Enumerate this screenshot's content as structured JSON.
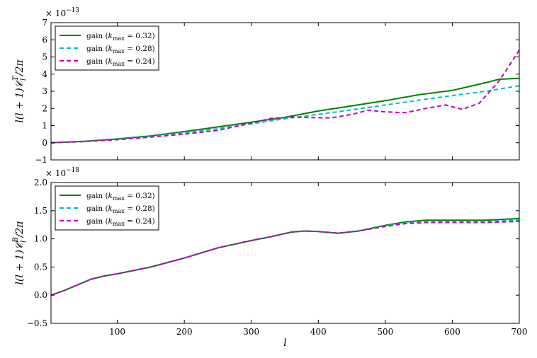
{
  "chart_data": [
    {
      "type": "line",
      "panel": "top",
      "ylabel": "l(l + 1)𝒞_l^T/2π",
      "ylabel_main": "l(l + 1)𝒞",
      "ylabel_sub": "l",
      "ylabel_sup": "T",
      "ylabel_tail": "/2π",
      "offset_text": "× 10",
      "offset_exp": "−13",
      "xlim": [
        1,
        700
      ],
      "ylim": [
        -1,
        7
      ],
      "yticks": [
        -1,
        0,
        1,
        2,
        3,
        4,
        5,
        6,
        7
      ],
      "yticklabels": [
        "−1",
        "0",
        "1",
        "2",
        "3",
        "4",
        "5",
        "6",
        "7"
      ],
      "legend_position": "top-left",
      "series": [
        {
          "name": "gain (k_max = 0.32)",
          "name_prefix": "gain (",
          "name_sub": "max",
          "name_value": " = 0.32)",
          "color": "#008000",
          "dash": "solid",
          "x": [
            1,
            50,
            100,
            150,
            200,
            250,
            300,
            350,
            400,
            450,
            500,
            550,
            600,
            650,
            670,
            700
          ],
          "y": [
            0.0,
            0.08,
            0.22,
            0.4,
            0.65,
            0.92,
            1.2,
            1.48,
            1.85,
            2.15,
            2.45,
            2.8,
            3.05,
            3.5,
            3.7,
            3.75
          ]
        },
        {
          "name": "gain (k_max = 0.28)",
          "name_prefix": "gain (",
          "name_sub": "max",
          "name_value": " = 0.28)",
          "color": "#00bfbf",
          "dash": "dashed",
          "x": [
            1,
            50,
            100,
            150,
            200,
            250,
            300,
            350,
            400,
            450,
            500,
            550,
            600,
            650,
            700
          ],
          "y": [
            0.0,
            0.07,
            0.2,
            0.36,
            0.58,
            0.82,
            1.1,
            1.4,
            1.65,
            1.92,
            2.2,
            2.48,
            2.75,
            3.0,
            3.32
          ]
        },
        {
          "name": "gain (k_max = 0.24)",
          "name_prefix": "gain (",
          "name_sub": "max",
          "name_value": " = 0.24)",
          "color": "#bf00bf",
          "dash": "dashed",
          "x": [
            1,
            50,
            100,
            150,
            200,
            250,
            300,
            330,
            360,
            390,
            420,
            450,
            475,
            500,
            530,
            560,
            590,
            615,
            640,
            670,
            700
          ],
          "y": [
            0.0,
            0.07,
            0.18,
            0.33,
            0.5,
            0.72,
            1.15,
            1.42,
            1.5,
            1.46,
            1.45,
            1.65,
            1.9,
            1.8,
            1.75,
            2.0,
            2.2,
            1.95,
            2.3,
            3.6,
            5.4
          ]
        }
      ]
    },
    {
      "type": "line",
      "panel": "bottom",
      "xlabel": "l",
      "ylabel": "l(l + 1)𝒞_l^B/2π",
      "ylabel_main": "l(l + 1)𝒞",
      "ylabel_sub": "l",
      "ylabel_sup": "B",
      "ylabel_tail": "/2π",
      "offset_text": "× 10",
      "offset_exp": "−18",
      "xlim": [
        1,
        700
      ],
      "ylim": [
        -0.5,
        2.0
      ],
      "xticks": [
        100,
        200,
        300,
        400,
        500,
        600,
        700
      ],
      "xticklabels": [
        "100",
        "200",
        "300",
        "400",
        "500",
        "600",
        "700"
      ],
      "yticks": [
        -0.5,
        0.0,
        0.5,
        1.0,
        1.5,
        2.0
      ],
      "yticklabels": [
        "−0.5",
        "0.0",
        "0.5",
        "1.0",
        "1.5",
        "2.0"
      ],
      "legend_position": "top-left",
      "series": [
        {
          "name": "gain (k_max = 0.32)",
          "name_prefix": "gain (",
          "name_sub": "max",
          "name_value": " = 0.32)",
          "color": "#008000",
          "dash": "solid",
          "x": [
            1,
            20,
            40,
            60,
            80,
            100,
            150,
            200,
            250,
            300,
            330,
            360,
            380,
            400,
            430,
            460,
            500,
            530,
            560,
            600,
            650,
            700
          ],
          "y": [
            0.0,
            0.08,
            0.18,
            0.28,
            0.34,
            0.38,
            0.5,
            0.66,
            0.84,
            0.97,
            1.04,
            1.12,
            1.14,
            1.13,
            1.1,
            1.14,
            1.24,
            1.3,
            1.33,
            1.33,
            1.33,
            1.36
          ]
        },
        {
          "name": "gain (k_max = 0.28)",
          "name_prefix": "gain (",
          "name_sub": "max",
          "name_value": " = 0.28)",
          "color": "#00bfbf",
          "dash": "dashed",
          "x": [
            1,
            20,
            40,
            60,
            80,
            100,
            150,
            200,
            250,
            300,
            330,
            360,
            380,
            400,
            430,
            460,
            500,
            530,
            560,
            600,
            650,
            700
          ],
          "y": [
            0.0,
            0.08,
            0.18,
            0.28,
            0.34,
            0.38,
            0.5,
            0.66,
            0.84,
            0.97,
            1.04,
            1.12,
            1.14,
            1.13,
            1.1,
            1.14,
            1.23,
            1.28,
            1.31,
            1.31,
            1.31,
            1.33
          ]
        },
        {
          "name": "gain (k_max = 0.24)",
          "name_prefix": "gain (",
          "name_sub": "max",
          "name_value": " = 0.24)",
          "color": "#bf00bf",
          "dash": "dashed",
          "x": [
            1,
            20,
            40,
            60,
            80,
            100,
            150,
            200,
            250,
            300,
            330,
            360,
            380,
            400,
            430,
            460,
            500,
            530,
            560,
            600,
            650,
            700
          ],
          "y": [
            0.0,
            0.08,
            0.18,
            0.28,
            0.34,
            0.38,
            0.5,
            0.66,
            0.84,
            0.97,
            1.04,
            1.12,
            1.14,
            1.13,
            1.1,
            1.14,
            1.22,
            1.27,
            1.29,
            1.29,
            1.29,
            1.31
          ]
        }
      ]
    }
  ]
}
